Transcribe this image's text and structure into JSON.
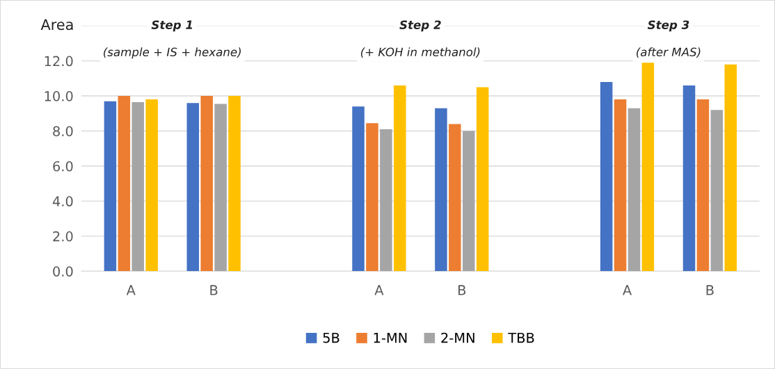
{
  "chart_data": {
    "type": "bar",
    "ylabel": "Area",
    "categories": [
      "A",
      "B",
      null,
      "A",
      "B",
      null,
      "A",
      "B"
    ],
    "series": [
      {
        "name": "5B",
        "color": "#4472c4",
        "values": [
          9.7,
          9.6,
          null,
          9.4,
          9.3,
          null,
          10.8,
          10.6
        ]
      },
      {
        "name": "1-MN",
        "color": "#ed7d31",
        "values": [
          10.0,
          10.0,
          null,
          8.45,
          8.4,
          null,
          9.8,
          9.8
        ]
      },
      {
        "name": "2-MN",
        "color": "#a5a5a5",
        "values": [
          9.65,
          9.55,
          null,
          8.1,
          8.0,
          null,
          9.3,
          9.2
        ]
      },
      {
        "name": "TBB",
        "color": "#ffc000",
        "values": [
          9.8,
          10.0,
          null,
          10.6,
          10.5,
          null,
          11.9,
          11.8
        ]
      }
    ],
    "ylim": [
      0,
      14
    ],
    "yticks": [
      {
        "value": 0,
        "label": "0.0"
      },
      {
        "value": 2,
        "label": "2.0"
      },
      {
        "value": 4,
        "label": "4.0"
      },
      {
        "value": 6,
        "label": "6.0"
      },
      {
        "value": 8,
        "label": "8.0"
      },
      {
        "value": 10,
        "label": "10.0"
      },
      {
        "value": 12,
        "label": "12.0"
      },
      {
        "value": 14,
        "label": null
      }
    ],
    "grid": "y",
    "legend": "bottom",
    "annotations": [
      "Step 1",
      "(sample + IS + hexane)",
      "Step 2",
      "(+ KOH in methanol)",
      "Step 3",
      "(after MAS)"
    ]
  }
}
